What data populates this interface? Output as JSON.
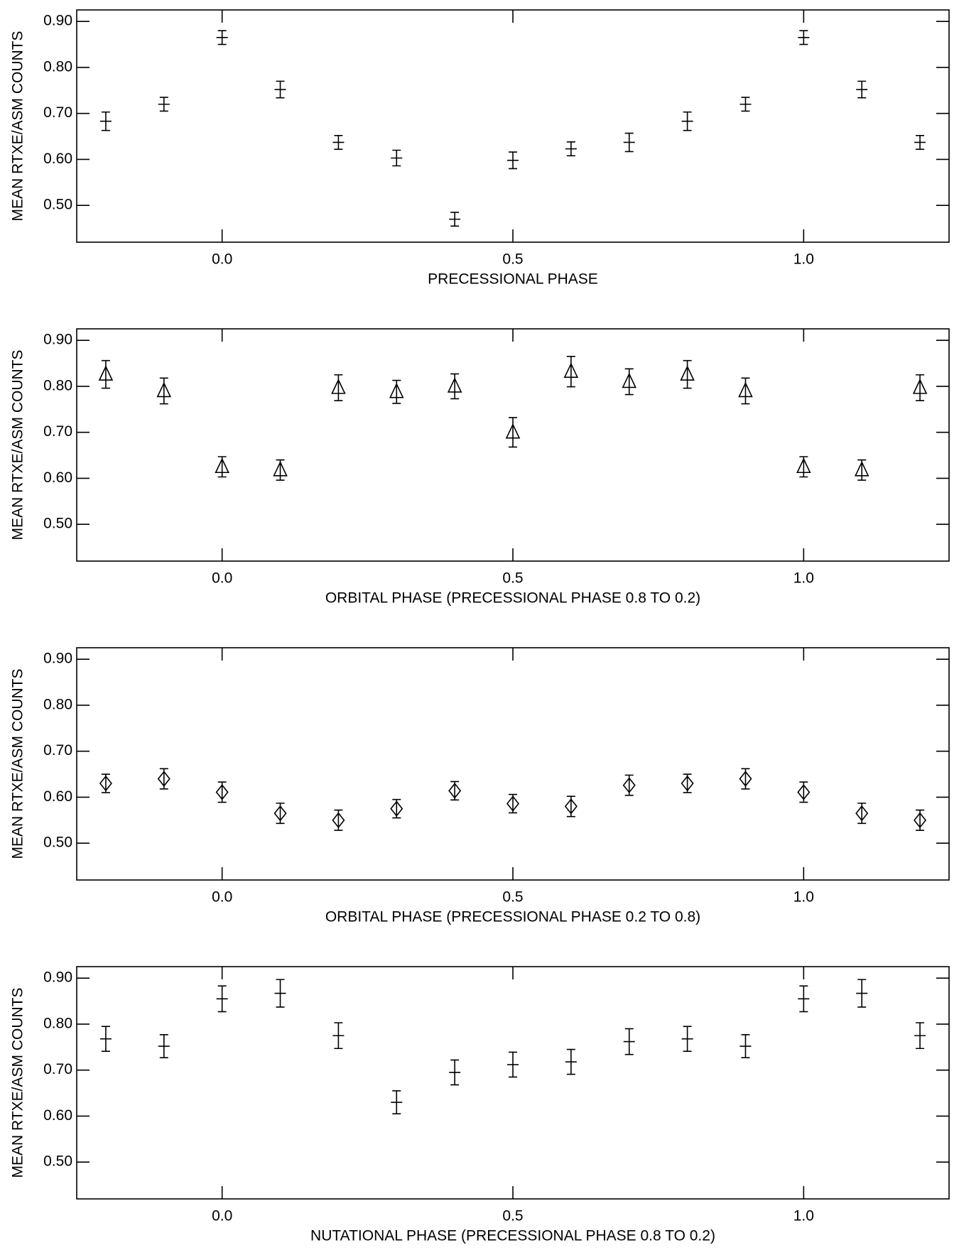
{
  "chart_data": [
    {
      "type": "scatter",
      "marker": "plus",
      "color": "#000000",
      "xlabel": "PRECESSIONAL PHASE",
      "ylabel": "MEAN RTXE/ASM COUNTS",
      "x": [
        -0.2,
        -0.1,
        0.0,
        0.1,
        0.2,
        0.3,
        0.4,
        0.5,
        0.6,
        0.7,
        0.8,
        0.9,
        1.0,
        1.1,
        1.2
      ],
      "values": [
        0.683,
        0.72,
        0.865,
        0.752,
        0.637,
        0.603,
        0.47,
        0.598,
        0.623,
        0.637,
        0.683,
        0.72,
        0.865,
        0.752,
        0.637
      ],
      "errors": [
        0.02,
        0.015,
        0.015,
        0.018,
        0.015,
        0.017,
        0.015,
        0.018,
        0.015,
        0.02,
        0.02,
        0.015,
        0.015,
        0.018,
        0.015
      ],
      "xlim": [
        -0.25,
        1.25
      ],
      "ylim": [
        0.42,
        0.925
      ],
      "xticks": [
        {
          "value": 0,
          "label": "0.0"
        },
        {
          "value": 0.5,
          "label": "0.5"
        },
        {
          "value": 1,
          "label": "1.0"
        }
      ],
      "yticks": [
        {
          "value": 0.5,
          "label": "0.50"
        },
        {
          "value": 0.6,
          "label": "0.60"
        },
        {
          "value": 0.7,
          "label": "0.70"
        },
        {
          "value": 0.8,
          "label": "0.80"
        },
        {
          "value": 0.9,
          "label": "0.90"
        }
      ]
    },
    {
      "type": "scatter",
      "marker": "triangle",
      "color": "#000000",
      "xlabel": "ORBITAL PHASE (PRECESSIONAL PHASE 0.8 TO 0.2)",
      "ylabel": "MEAN RTXE/ASM COUNTS",
      "x": [
        -0.2,
        -0.1,
        0.0,
        0.1,
        0.2,
        0.3,
        0.4,
        0.5,
        0.6,
        0.7,
        0.8,
        0.9,
        1.0,
        1.1,
        1.2
      ],
      "values": [
        0.826,
        0.79,
        0.625,
        0.618,
        0.797,
        0.788,
        0.8,
        0.7,
        0.832,
        0.81,
        0.826,
        0.79,
        0.625,
        0.618,
        0.797
      ],
      "errors": [
        0.03,
        0.028,
        0.022,
        0.022,
        0.028,
        0.025,
        0.027,
        0.032,
        0.033,
        0.028,
        0.03,
        0.028,
        0.022,
        0.022,
        0.028
      ],
      "xlim": [
        -0.25,
        1.25
      ],
      "ylim": [
        0.42,
        0.925
      ],
      "xticks": [
        {
          "value": 0,
          "label": "0.0"
        },
        {
          "value": 0.5,
          "label": "0.5"
        },
        {
          "value": 1,
          "label": "1.0"
        }
      ],
      "yticks": [
        {
          "value": 0.5,
          "label": "0.50"
        },
        {
          "value": 0.6,
          "label": "0.60"
        },
        {
          "value": 0.7,
          "label": "0.70"
        },
        {
          "value": 0.8,
          "label": "0.80"
        },
        {
          "value": 0.9,
          "label": "0.90"
        }
      ]
    },
    {
      "type": "scatter",
      "marker": "diamond",
      "color": "#000000",
      "xlabel": "ORBITAL PHASE (PRECESSIONAL PHASE 0.2 TO 0.8)",
      "ylabel": "MEAN RTXE/ASM COUNTS",
      "x": [
        -0.2,
        -0.1,
        0.0,
        0.1,
        0.2,
        0.3,
        0.4,
        0.5,
        0.6,
        0.7,
        0.8,
        0.9,
        1.0,
        1.1,
        1.2
      ],
      "values": [
        0.63,
        0.64,
        0.611,
        0.565,
        0.55,
        0.575,
        0.614,
        0.586,
        0.58,
        0.626,
        0.63,
        0.64,
        0.611,
        0.565,
        0.55
      ],
      "errors": [
        0.02,
        0.022,
        0.022,
        0.022,
        0.022,
        0.02,
        0.02,
        0.02,
        0.022,
        0.022,
        0.02,
        0.022,
        0.022,
        0.022,
        0.022
      ],
      "xlim": [
        -0.25,
        1.25
      ],
      "ylim": [
        0.42,
        0.925
      ],
      "xticks": [
        {
          "value": 0,
          "label": "0.0"
        },
        {
          "value": 0.5,
          "label": "0.5"
        },
        {
          "value": 1,
          "label": "1.0"
        }
      ],
      "yticks": [
        {
          "value": 0.5,
          "label": "0.50"
        },
        {
          "value": 0.6,
          "label": "0.60"
        },
        {
          "value": 0.7,
          "label": "0.70"
        },
        {
          "value": 0.8,
          "label": "0.80"
        },
        {
          "value": 0.9,
          "label": "0.90"
        }
      ]
    },
    {
      "type": "scatter",
      "marker": "plus",
      "color": "#000000",
      "xlabel": "NUTATIONAL PHASE (PRECESSIONAL PHASE 0.8 TO 0.2)",
      "ylabel": "MEAN RTXE/ASM COUNTS",
      "x": [
        -0.2,
        -0.1,
        0.0,
        0.1,
        0.2,
        0.3,
        0.4,
        0.5,
        0.6,
        0.7,
        0.8,
        0.9,
        1.0,
        1.1,
        1.2
      ],
      "values": [
        0.768,
        0.752,
        0.855,
        0.867,
        0.775,
        0.63,
        0.695,
        0.712,
        0.718,
        0.762,
        0.768,
        0.752,
        0.855,
        0.867,
        0.775
      ],
      "errors": [
        0.027,
        0.025,
        0.028,
        0.03,
        0.028,
        0.025,
        0.027,
        0.027,
        0.027,
        0.028,
        0.027,
        0.025,
        0.028,
        0.03,
        0.028
      ],
      "xlim": [
        -0.25,
        1.25
      ],
      "ylim": [
        0.42,
        0.925
      ],
      "xticks": [
        {
          "value": 0,
          "label": "0.0"
        },
        {
          "value": 0.5,
          "label": "0.5"
        },
        {
          "value": 1,
          "label": "1.0"
        }
      ],
      "yticks": [
        {
          "value": 0.5,
          "label": "0.50"
        },
        {
          "value": 0.6,
          "label": "0.60"
        },
        {
          "value": 0.7,
          "label": "0.70"
        },
        {
          "value": 0.8,
          "label": "0.80"
        },
        {
          "value": 0.9,
          "label": "0.90"
        }
      ]
    }
  ]
}
